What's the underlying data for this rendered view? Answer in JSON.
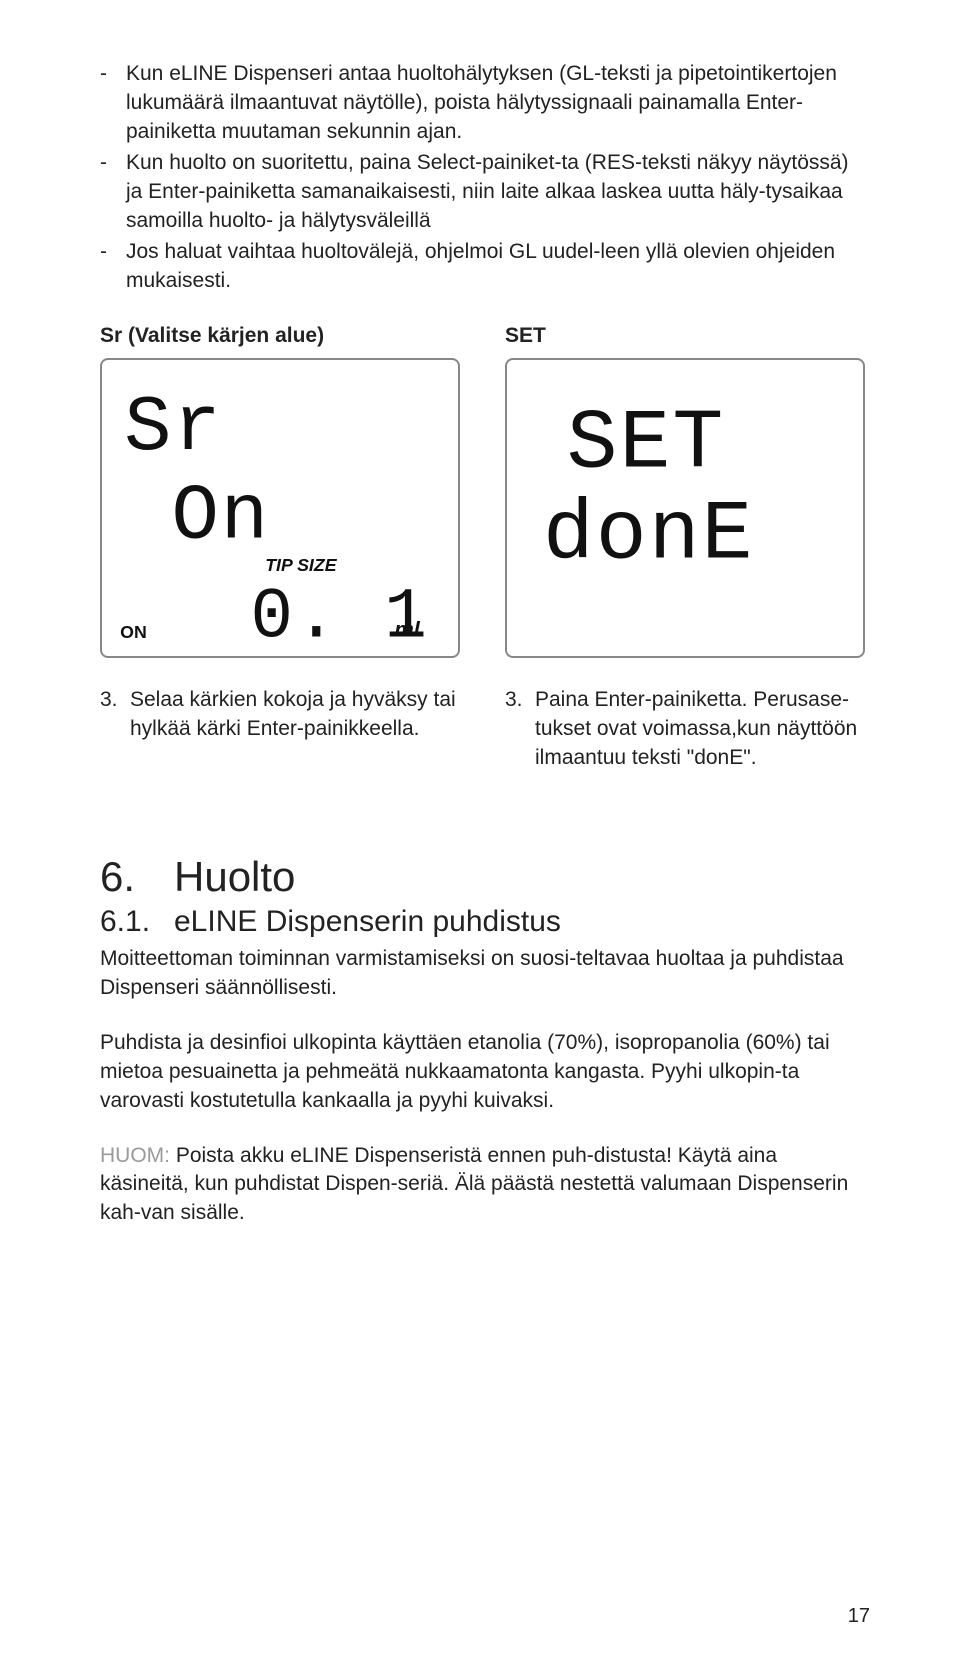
{
  "bullets": [
    "Kun eLINE Dispenseri antaa huoltohälytyksen (GL-teksti ja pipetointikertojen lukumäärä ilmaantuvat näytölle), poista hälytyssignaali painamalla Enter-painiketta muutaman sekunnin ajan.",
    "Kun huolto on suoritettu, paina Select-painiket-ta (RES-teksti näkyy näytössä) ja Enter-painiketta samanaikaisesti, niin laite alkaa laskea uutta häly-tysaikaa samoilla huolto- ja hälytysväleillä",
    "Jos haluat vaihtaa huoltovälejä, ohjelmoi GL uudel-leen yllä olevien ohjeiden mukaisesti."
  ],
  "left": {
    "label": "Sr (Valitse kärjen alue)",
    "lcd": {
      "line1": "Sr",
      "line2": "On",
      "tip_label": "TIP SIZE",
      "tip_value": "0. 1",
      "tip_unit": "ml",
      "on_indicator": "ON"
    },
    "caption_num": "3.",
    "caption": "Selaa kärkien kokoja  ja hyväksy tai hylkää kärki Enter-painikkeella."
  },
  "right": {
    "label": "SET",
    "lcd": {
      "line1": "SET",
      "line2": "donE"
    },
    "caption_num": "3.",
    "caption": "Paina Enter-painiketta. Perusase-tukset ovat voimassa,kun näyttöön ilmaantuu teksti \"donE\"."
  },
  "section": {
    "num": "6.",
    "title": "Huolto",
    "sub_num": "6.1.",
    "sub_title": "eLINE Dispenserin puhdistus",
    "p1": "Moitteettoman toiminnan varmistamiseksi on suosi-teltavaa huoltaa ja puhdistaa Dispenseri säännöllisesti.",
    "p2": "Puhdista ja desinfioi ulkopinta käyttäen etanolia (70%), isopropanolia (60%) tai mietoa pesuainetta ja pehmeätä nukkaamatonta kangasta. Pyyhi ulkopin-ta varovasti kostutetulla kankaalla ja pyyhi kuivaksi.",
    "note_label": "HUOM:",
    "note_body": " Poista akku eLINE Dispenseristä ennen puh-distusta! Käytä aina käsineitä, kun puhdistat Dispen-seriä. Älä päästä nestettä valumaan Dispenserin kah-van sisälle."
  },
  "page_number": "17"
}
